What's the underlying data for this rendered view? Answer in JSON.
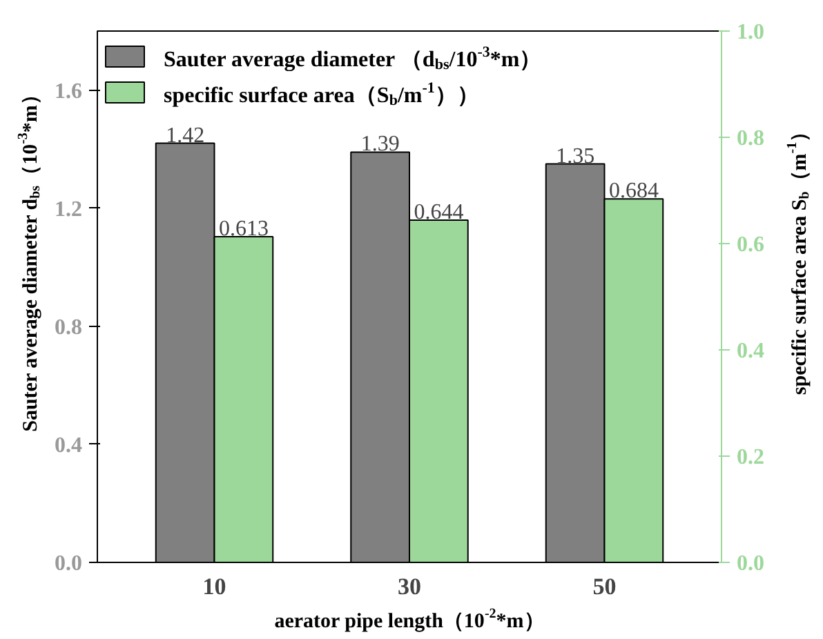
{
  "chart_data": {
    "type": "bar",
    "categories": [
      "10",
      "30",
      "50"
    ],
    "xlabel": "aerator pipe length（10$^{-2}$*m）",
    "ylabel": "Sauter average diameter d$_{bs}$（10$^{-3}$*m）",
    "y2label": "specific surface area S$_{b}$（m$^{-1}$）",
    "series": [
      {
        "name": "Sauter average diameter （d$_{bs}$/10$^{-3}$*m）",
        "color": "#808080",
        "values": [
          1.42,
          1.39,
          1.35
        ]
      },
      {
        "name": "specific surface area（S$_{b}$/m$^{-1}$））",
        "color": "#9dd89b",
        "values": [
          0.613,
          0.644,
          0.684
        ],
        "axis": "y2"
      }
    ],
    "ylim": [
      0,
      1.8
    ],
    "yticks": [
      {
        "value": 0,
        "label": "0.0"
      },
      0.4,
      0.8,
      1.2,
      1.6
    ],
    "y2lim": [
      0,
      1.0
    ],
    "y2ticks": [
      {
        "value": 0,
        "label": "0.0"
      },
      0.2,
      0.4,
      0.6,
      0.8,
      {
        "value": 1.0,
        "label": "1.0"
      }
    ],
    "data_labels": true,
    "legend": "top left"
  }
}
